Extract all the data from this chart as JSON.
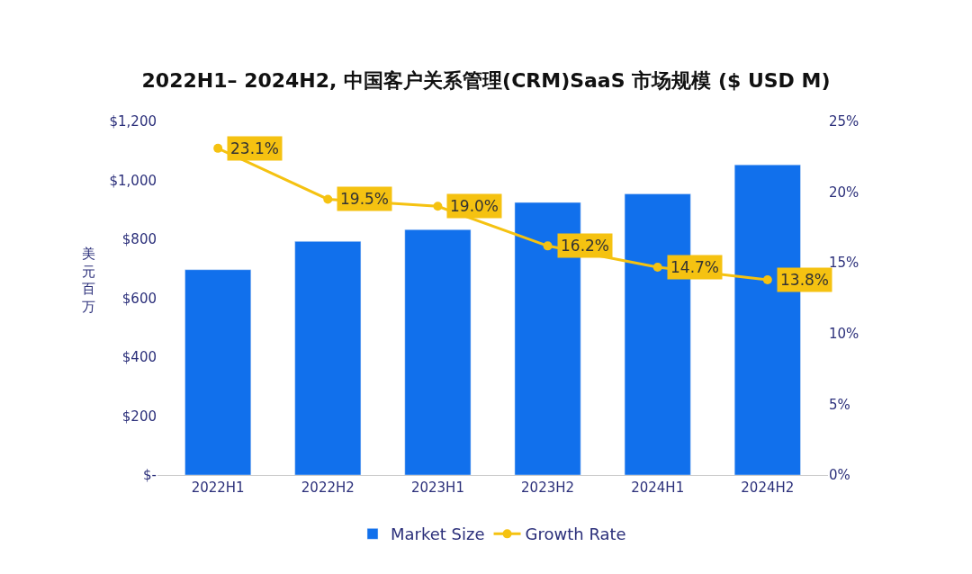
{
  "chart_data": {
    "type": "bar",
    "title": "2022H1– 2024H2, 中国客户关系管理(CRM)SaaS 市场规模 ($ USD M)",
    "ylabel": "美元百万",
    "categories": [
      "2022H1",
      "2022H2",
      "2023H1",
      "2023H2",
      "2024H1",
      "2024H2"
    ],
    "series": [
      {
        "name": "Market Size",
        "color": "#1170ec",
        "values": [
          697,
          793,
          833,
          925,
          954,
          1053
        ]
      },
      {
        "name": "Growth Rate",
        "type": "line",
        "axis": "y2",
        "color": "#f5c211",
        "marker": "circle",
        "values": [
          23.1,
          19.5,
          19.0,
          16.2,
          14.7,
          13.8
        ],
        "value_labels": [
          "23.1%",
          "19.5%",
          "19.0%",
          "16.2%",
          "14.7%",
          "13.8%"
        ]
      }
    ],
    "ylim": [
      0,
      1200
    ],
    "yticks": [
      {
        "value": 0,
        "label": "$-"
      },
      {
        "value": 200,
        "label": "$200"
      },
      {
        "value": 400,
        "label": "$400"
      },
      {
        "value": 600,
        "label": "$600"
      },
      {
        "value": 800,
        "label": "$800"
      },
      {
        "value": 1000,
        "label": "$1,000"
      },
      {
        "value": 1200,
        "label": "$1,200"
      }
    ],
    "y2lim": [
      0,
      25
    ],
    "y2ticks": [
      {
        "value": 0,
        "label": "0%"
      },
      {
        "value": 5,
        "label": "5%"
      },
      {
        "value": 10,
        "label": "10%"
      },
      {
        "value": 15,
        "label": "15%"
      },
      {
        "value": 20,
        "label": "20%"
      },
      {
        "value": 25,
        "label": "25%"
      }
    ],
    "legend": "bottom"
  }
}
